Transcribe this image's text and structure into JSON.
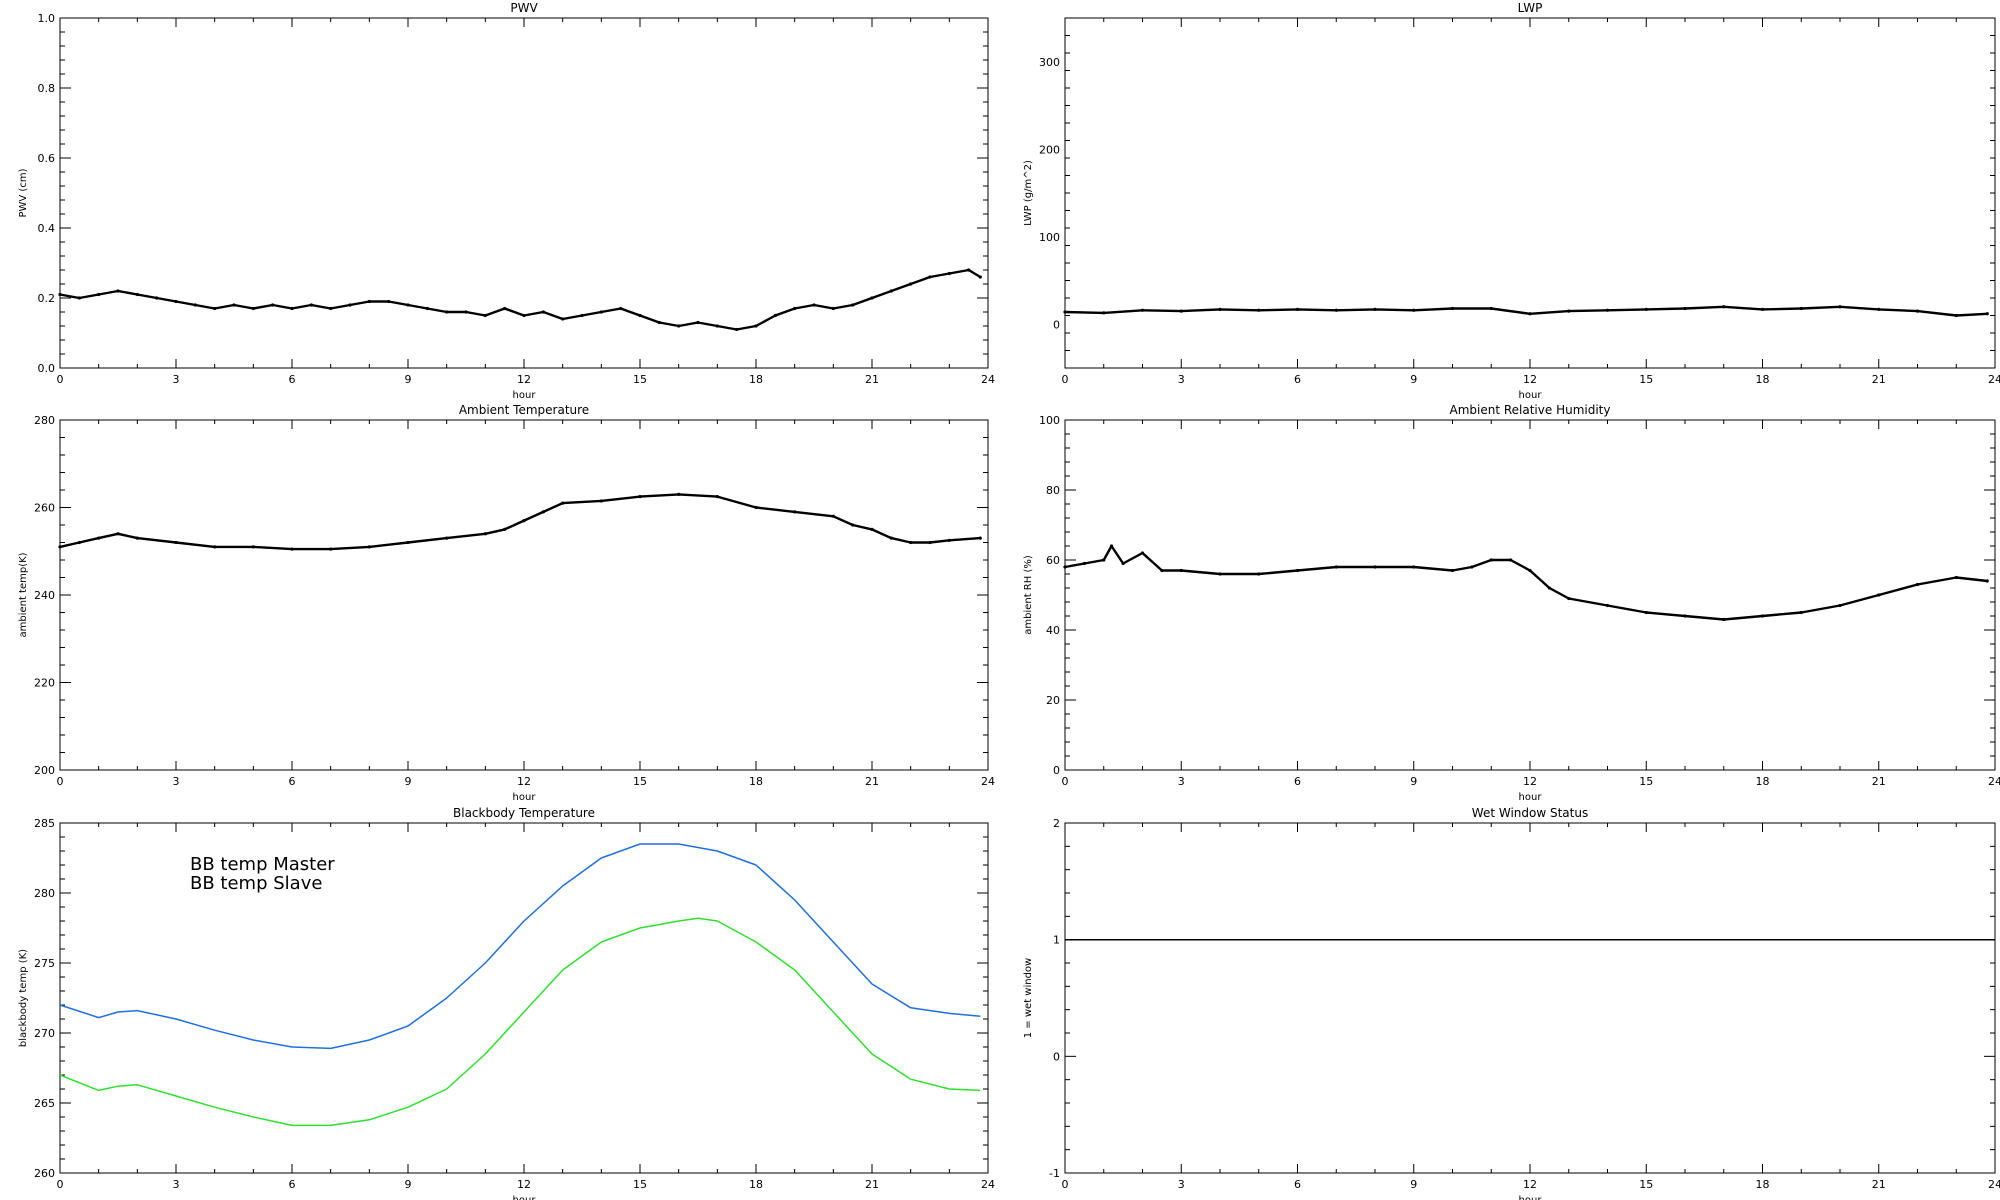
{
  "chart_data": [
    {
      "type": "scatter",
      "title": "PWV",
      "xlabel": "hour",
      "ylabel": "PWV (cm)",
      "xlim": [
        0,
        24
      ],
      "ylim": [
        0.0,
        1.0
      ],
      "xticks": [
        0,
        3,
        6,
        9,
        12,
        15,
        18,
        21,
        24
      ],
      "yticks": [
        0.0,
        0.2,
        0.4,
        0.6,
        0.8,
        1.0
      ],
      "ytick_labels": [
        "0.0",
        "0.2",
        "0.4",
        "0.6",
        "0.8",
        "1.0"
      ],
      "grid": false,
      "series": [
        {
          "color": "#000000",
          "x": [
            0,
            0.5,
            1,
            1.5,
            2,
            2.5,
            3,
            3.5,
            4,
            4.5,
            5,
            5.5,
            6,
            6.5,
            7,
            7.5,
            8,
            8.5,
            9,
            9.5,
            10,
            10.5,
            11,
            11.5,
            12,
            12.5,
            13,
            13.5,
            14,
            14.5,
            15,
            15.5,
            16,
            16.5,
            17,
            17.5,
            18,
            18.5,
            19,
            19.5,
            20,
            20.5,
            21,
            21.5,
            22,
            22.5,
            23,
            23.5,
            23.8
          ],
          "values": [
            0.21,
            0.2,
            0.21,
            0.22,
            0.21,
            0.2,
            0.19,
            0.18,
            0.17,
            0.18,
            0.17,
            0.18,
            0.17,
            0.18,
            0.17,
            0.18,
            0.19,
            0.19,
            0.18,
            0.17,
            0.16,
            0.16,
            0.15,
            0.17,
            0.15,
            0.16,
            0.14,
            0.15,
            0.16,
            0.17,
            0.15,
            0.13,
            0.12,
            0.13,
            0.12,
            0.11,
            0.12,
            0.15,
            0.17,
            0.18,
            0.17,
            0.18,
            0.2,
            0.22,
            0.24,
            0.26,
            0.27,
            0.28,
            0.26
          ]
        }
      ]
    },
    {
      "type": "scatter",
      "title": "LWP",
      "xlabel": "hour",
      "ylabel": "LWP (g/m^2)",
      "xlim": [
        0,
        24
      ],
      "ylim": [
        -50,
        350
      ],
      "xticks": [
        0,
        3,
        6,
        9,
        12,
        15,
        18,
        21,
        24
      ],
      "yticks": [
        0,
        100,
        200,
        300
      ],
      "ytick_labels": [
        "0",
        "100",
        "200",
        "300"
      ],
      "grid": false,
      "series": [
        {
          "color": "#000000",
          "x": [
            0,
            1,
            2,
            3,
            4,
            5,
            6,
            7,
            8,
            9,
            10,
            11,
            12,
            13,
            14,
            15,
            16,
            17,
            18,
            19,
            20,
            21,
            22,
            23,
            23.8
          ],
          "values": [
            14,
            13,
            16,
            15,
            17,
            16,
            17,
            16,
            17,
            16,
            18,
            18,
            12,
            15,
            16,
            17,
            18,
            20,
            17,
            18,
            20,
            17,
            15,
            10,
            12
          ]
        }
      ]
    },
    {
      "type": "scatter",
      "title": "Ambient Temperature",
      "xlabel": "hour",
      "ylabel": "ambient temp(K)",
      "xlim": [
        0,
        24
      ],
      "ylim": [
        200,
        280
      ],
      "xticks": [
        0,
        3,
        6,
        9,
        12,
        15,
        18,
        21,
        24
      ],
      "yticks": [
        200,
        220,
        240,
        260,
        280
      ],
      "ytick_labels": [
        "200",
        "220",
        "240",
        "260",
        "280"
      ],
      "grid": false,
      "series": [
        {
          "color": "#000000",
          "x": [
            0,
            0.5,
            1,
            1.5,
            2,
            3,
            4,
            5,
            6,
            7,
            8,
            9,
            10,
            11,
            11.5,
            12,
            12.5,
            13,
            14,
            15,
            16,
            17,
            18,
            19,
            20,
            20.5,
            21,
            21.5,
            22,
            22.5,
            23,
            23.8
          ],
          "values": [
            251,
            252,
            253,
            254,
            253,
            252,
            251,
            251,
            250.5,
            250.5,
            251,
            252,
            253,
            254,
            255,
            257,
            259,
            261,
            261.5,
            262.5,
            263,
            262.5,
            260,
            259,
            258,
            256,
            255,
            253,
            252,
            252,
            252.5,
            253
          ]
        }
      ]
    },
    {
      "type": "scatter",
      "title": "Ambient Relative Humidity",
      "xlabel": "hour",
      "ylabel": "ambient RH (%)",
      "xlim": [
        0,
        24
      ],
      "ylim": [
        0,
        100
      ],
      "xticks": [
        0,
        3,
        6,
        9,
        12,
        15,
        18,
        21,
        24
      ],
      "yticks": [
        0,
        20,
        40,
        60,
        80,
        100
      ],
      "ytick_labels": [
        "0",
        "20",
        "40",
        "60",
        "80",
        "100"
      ],
      "grid": false,
      "series": [
        {
          "color": "#000000",
          "x": [
            0,
            0.5,
            1,
            1.2,
            1.5,
            2,
            2.5,
            3,
            4,
            5,
            6,
            7,
            8,
            9,
            10,
            10.5,
            11,
            11.5,
            12,
            12.5,
            13,
            14,
            15,
            16,
            17,
            18,
            19,
            20,
            21,
            22,
            23,
            23.8
          ],
          "values": [
            58,
            59,
            60,
            64,
            59,
            62,
            57,
            57,
            56,
            56,
            57,
            58,
            58,
            58,
            57,
            58,
            60,
            60,
            57,
            52,
            49,
            47,
            45,
            44,
            43,
            44,
            45,
            47,
            50,
            53,
            55,
            54
          ]
        }
      ]
    },
    {
      "type": "line",
      "title": "Blackbody Temperature",
      "xlabel": "hour",
      "ylabel": "blackbody temp (K)",
      "xlim": [
        0,
        24
      ],
      "ylim": [
        260,
        285
      ],
      "xticks": [
        0,
        3,
        6,
        9,
        12,
        15,
        18,
        21,
        24
      ],
      "yticks": [
        260,
        265,
        270,
        275,
        280,
        285
      ],
      "ytick_labels": [
        "260",
        "265",
        "270",
        "275",
        "280",
        "285"
      ],
      "grid": false,
      "legend": [
        "BB temp Master",
        "BB temp Slave"
      ],
      "legend_position": "top-left",
      "series": [
        {
          "name": "BB temp Master",
          "color": "#1f6fe0",
          "x": [
            0,
            1,
            1.5,
            2,
            3,
            4,
            5,
            6,
            7,
            8,
            9,
            10,
            11,
            12,
            13,
            14,
            15,
            16,
            17,
            18,
            19,
            20,
            21,
            22,
            23,
            23.8
          ],
          "values": [
            272,
            271.1,
            271.5,
            271.6,
            271,
            270.2,
            269.5,
            269,
            268.9,
            269.5,
            270.5,
            272.5,
            275,
            278,
            280.5,
            282.5,
            283.5,
            283.5,
            283,
            282,
            279.5,
            276.5,
            273.5,
            271.8,
            271.4,
            271.2
          ]
        },
        {
          "name": "BB temp Slave",
          "color": "#2ee02e",
          "x": [
            0,
            1,
            1.5,
            2,
            3,
            4,
            5,
            6,
            7,
            8,
            9,
            10,
            11,
            12,
            13,
            14,
            15,
            16,
            16.5,
            17,
            18,
            19,
            20,
            21,
            22,
            23,
            23.8
          ],
          "values": [
            267,
            265.9,
            266.2,
            266.3,
            265.5,
            264.7,
            264,
            263.4,
            263.4,
            263.8,
            264.7,
            266,
            268.5,
            271.5,
            274.5,
            276.5,
            277.5,
            278,
            278.2,
            278,
            276.5,
            274.5,
            271.5,
            268.5,
            266.7,
            266,
            265.9
          ]
        }
      ]
    },
    {
      "type": "line",
      "title": "Wet Window Status",
      "xlabel": "hour",
      "ylabel": "1 = wet window",
      "xlim": [
        0,
        24
      ],
      "ylim": [
        -1,
        2
      ],
      "xticks": [
        0,
        3,
        6,
        9,
        12,
        15,
        18,
        21,
        24
      ],
      "yticks": [
        -1,
        0,
        1,
        2
      ],
      "ytick_labels": [
        "-1",
        "0",
        "1",
        "2"
      ],
      "grid": false,
      "series": [
        {
          "color": "#000000",
          "x": [
            0,
            24
          ],
          "values": [
            1,
            1
          ]
        }
      ]
    }
  ]
}
